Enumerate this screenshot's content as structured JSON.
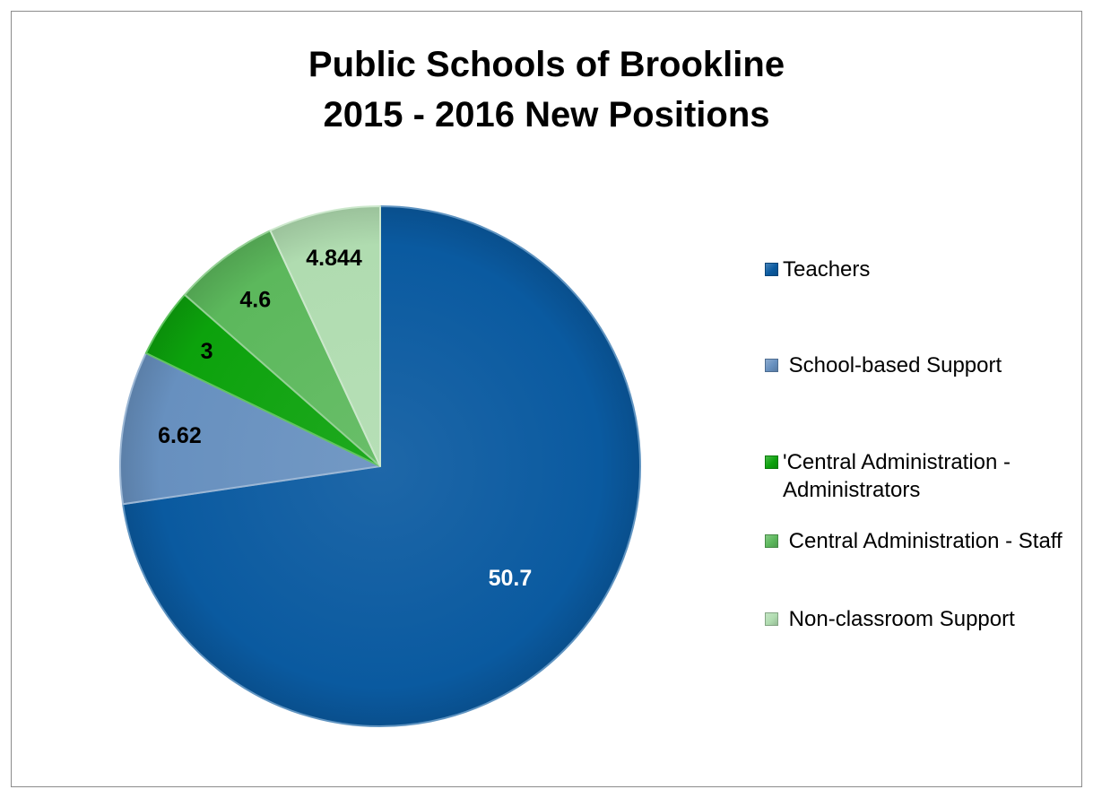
{
  "chart_data": {
    "type": "pie",
    "title": [
      "Public Schools of Brookline",
      "2015 - 2016 New Positions"
    ],
    "categories": [
      "Teachers",
      " School-based Support",
      "'Central Administration - Administrators",
      " Central Administration - Staff",
      " Non-classroom Support"
    ],
    "values": [
      50.7,
      6.62,
      3,
      4.6,
      4.844
    ],
    "data_labels": [
      "50.7",
      "6.62",
      "3",
      "4.6",
      "4.844"
    ],
    "colors": [
      "#0a5aa0",
      "#6790bf",
      "#0ca20c",
      "#5cb85c",
      "#b0dcb0"
    ],
    "label_colors": [
      "#ffffff",
      "#000000",
      "#000000",
      "#000000",
      "#000000"
    ],
    "start_angle_deg": 0,
    "direction": "clockwise",
    "legend_position": "right",
    "grid": false
  }
}
